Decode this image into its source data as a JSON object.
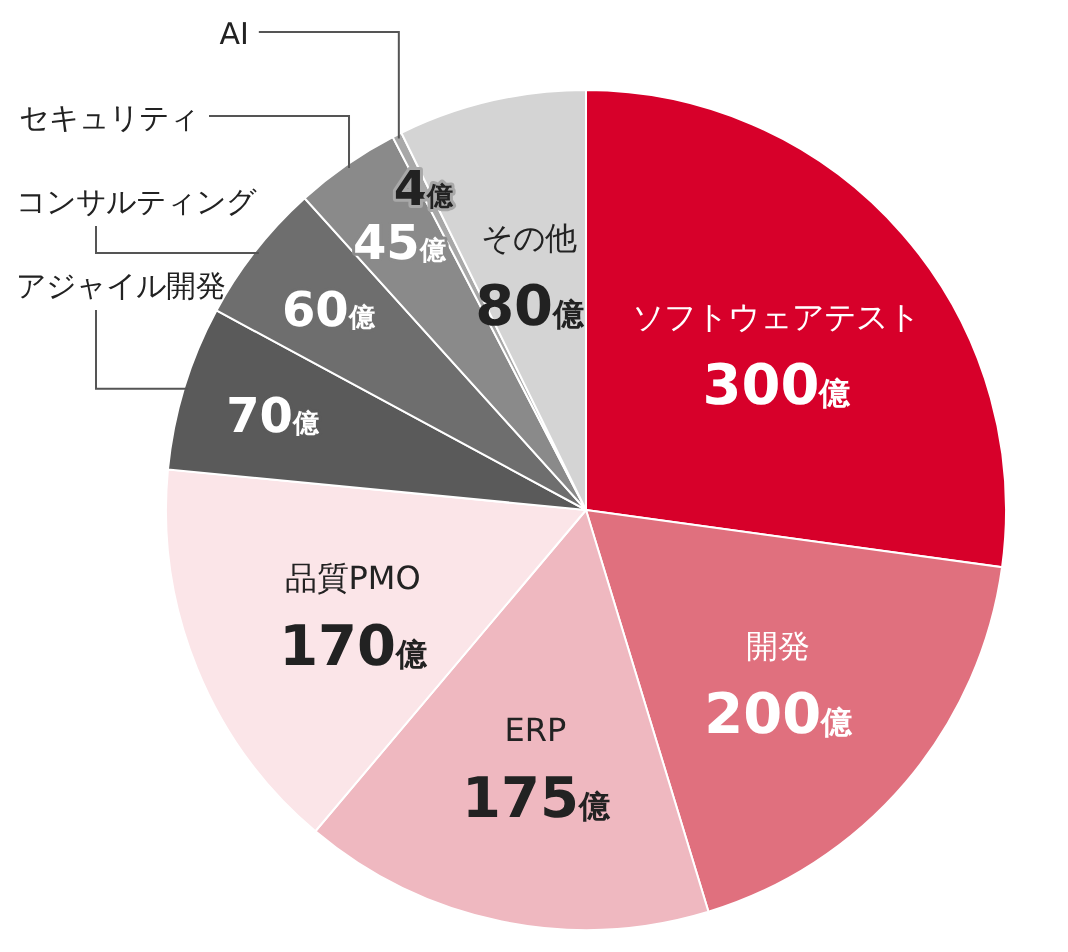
{
  "chart_data": {
    "type": "pie",
    "categories": [
      "ソフトウェアテスト",
      "開発",
      "ERP",
      "品質PMO",
      "アジャイル開発",
      "コンサルティング",
      "セキュリティ",
      "AI",
      "その他"
    ],
    "values": [
      300,
      200,
      175,
      170,
      70,
      60,
      45,
      4,
      80
    ],
    "value_labels": [
      "300億",
      "200億",
      "175億",
      "170億",
      "70億",
      "60億",
      "45億",
      "4億",
      "80億"
    ],
    "colors": [
      "#d7002a",
      "#e0707e",
      "#efb8c0",
      "#fbe5e8",
      "#5a5a5a",
      "#6e6e6e",
      "#8a8a8a",
      "#a8a8a8",
      "#d4d4d4"
    ]
  }
}
